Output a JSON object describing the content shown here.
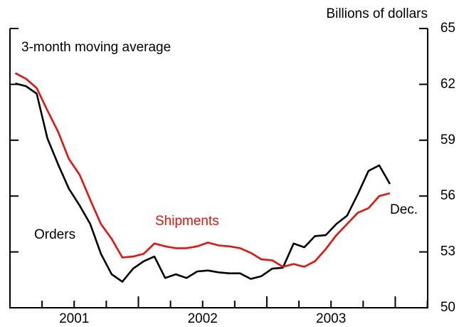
{
  "chart_data": {
    "type": "line",
    "y_axis_label": "Billions of dollars",
    "annotation": "3-month moving average",
    "end_label": "Dec.",
    "categories": [
      null,
      null,
      null,
      null,
      null,
      null,
      null,
      null,
      null,
      null,
      null,
      null,
      null,
      null,
      null,
      null,
      null,
      null,
      null,
      null,
      null,
      null,
      null,
      null,
      null,
      null,
      null,
      null,
      null,
      null,
      null,
      null,
      null,
      null,
      null,
      null
    ],
    "x_labels": [
      "2001",
      "2002",
      "2003"
    ],
    "series": [
      {
        "name": "Orders",
        "color": "#000000",
        "values": [
          62.05,
          61.9,
          61.5,
          59.1,
          57.7,
          56.4,
          55.5,
          54.5,
          52.9,
          51.8,
          51.4,
          52.1,
          52.5,
          52.75,
          51.6,
          51.8,
          51.6,
          51.95,
          52.0,
          51.9,
          51.85,
          51.85,
          51.55,
          51.7,
          52.1,
          52.15,
          53.45,
          53.25,
          53.85,
          53.9,
          54.5,
          54.95,
          56.1,
          57.35,
          57.65,
          56.65
        ]
      },
      {
        "name": "Shipments",
        "color": "#e8120c",
        "values": [
          62.6,
          62.3,
          61.8,
          60.6,
          59.45,
          58.0,
          57.15,
          55.8,
          54.5,
          53.7,
          52.7,
          52.75,
          52.9,
          53.45,
          53.3,
          53.2,
          53.2,
          53.3,
          53.5,
          53.35,
          53.3,
          53.2,
          52.95,
          52.6,
          52.55,
          52.2,
          52.35,
          52.2,
          52.5,
          53.15,
          53.9,
          54.5,
          55.1,
          55.35,
          56.0,
          56.15
        ]
      }
    ],
    "ylim": [
      50,
      65
    ],
    "yticks": [
      50,
      53,
      56,
      59,
      62,
      65
    ]
  }
}
